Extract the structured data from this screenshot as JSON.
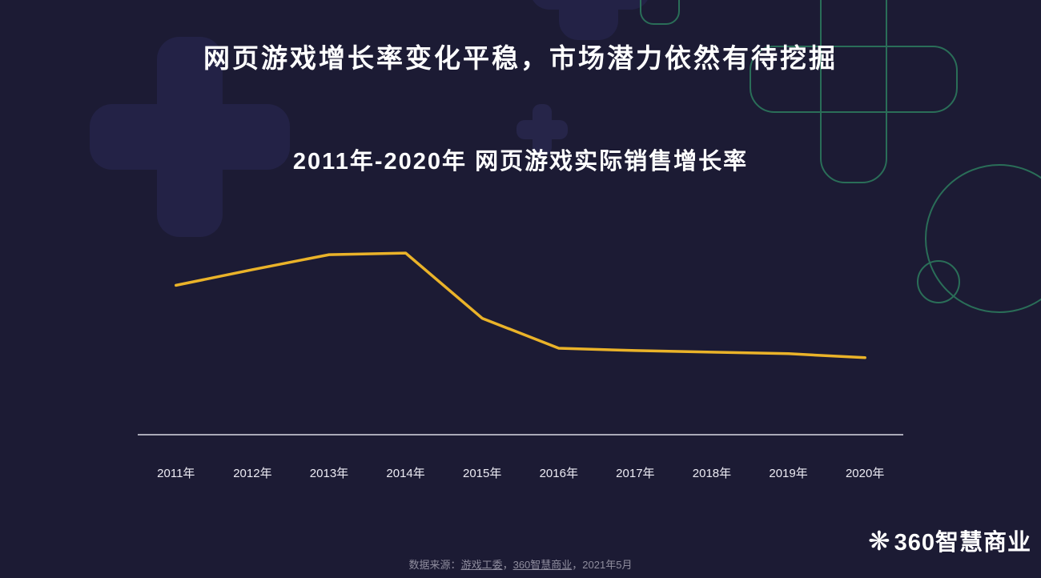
{
  "page": {
    "background_color": "#1c1b34",
    "title": "网页游戏增长率变化平稳，市场潜力依然有待挖掘"
  },
  "chart_data": {
    "type": "line",
    "title": "2011年-2020年 网页游戏实际销售增长率",
    "categories": [
      "2011年",
      "2012年",
      "2013年",
      "2014年",
      "2015年",
      "2016年",
      "2017年",
      "2018年",
      "2019年",
      "2020年"
    ],
    "values": [
      190,
      210,
      229,
      231,
      148,
      110,
      107,
      105,
      103,
      98
    ],
    "xlabel": "",
    "ylabel": "",
    "ylim": [
      0,
      280
    ],
    "grid": false,
    "legend": false,
    "y_axis_labels_visible": false,
    "note": "y-axis has no visible scale; values are relative heights read from the plot",
    "line_color": "#eab329",
    "axis_line_color": "#d9d9e3"
  },
  "footer": {
    "source_prefix": "数据来源：",
    "source_link1": "游戏工委",
    "source_sep": "，",
    "source_link2": "360智慧商业",
    "source_suffix": "，2021年5月"
  },
  "logo": {
    "icon": "flower-asterisk-icon",
    "text": "360智慧商业"
  },
  "decor": {
    "cross_fill": "#232246",
    "cross_fill_small": "#262549",
    "outline_color": "#2a6e58"
  }
}
